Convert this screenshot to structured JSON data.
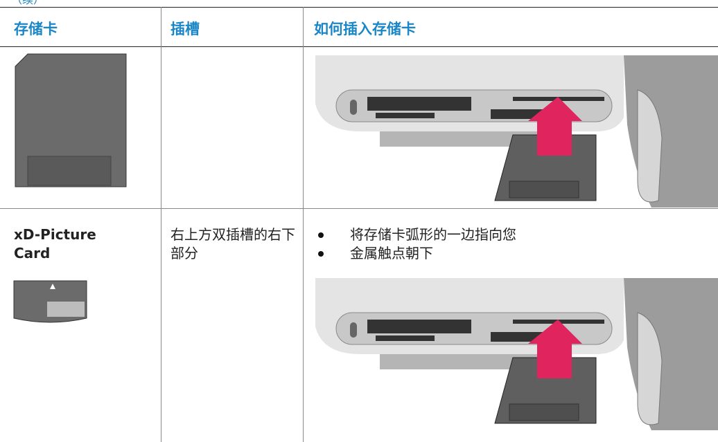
{
  "continued": "（续）",
  "table": {
    "header": [
      "存储卡",
      "插槽",
      "如何插入存储卡"
    ],
    "rows": [
      {
        "card": "",
        "slot": "",
        "steps": []
      },
      {
        "card": "xD-Picture Card",
        "slot": "右上方双插槽的右下部分",
        "steps": [
          "将存储卡弧形的一边指向您",
          "金属触点朝下"
        ]
      }
    ]
  }
}
